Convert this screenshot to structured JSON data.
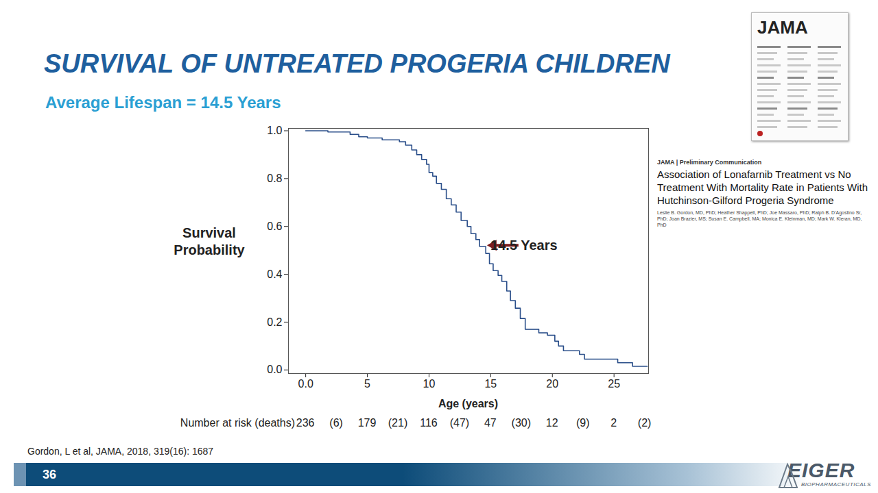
{
  "chart_data": {
    "type": "line",
    "title": "SURVIVAL OF UNTREATED PROGERIA CHILDREN",
    "subtitle": "Average Lifespan = 14.5 Years",
    "x_label": "Age (years)",
    "y_label": "Survival Probability",
    "xlim": [
      -1.4,
      27.8
    ],
    "xticks": [
      {
        "value": 0,
        "label": "0.0"
      },
      5,
      10,
      15,
      20,
      25
    ],
    "ylim": [
      -0.015,
      1.01
    ],
    "yticks": [
      {
        "value": 0,
        "label": "0.0"
      },
      {
        "value": 0.2,
        "label": "0.2"
      },
      {
        "value": 0.4,
        "label": "0.4"
      },
      {
        "value": 0.6,
        "label": "0.6"
      },
      {
        "value": 0.8,
        "label": "0.8"
      },
      {
        "value": 1,
        "label": "1.0"
      }
    ],
    "grid": false,
    "color": "#2b4f8a",
    "line_style": "step",
    "x": [
      0,
      1.8,
      3.6,
      4.3,
      5.0,
      6.2,
      7.6,
      8.1,
      8.6,
      9.0,
      9.4,
      9.8,
      10.0,
      10.3,
      10.6,
      11.0,
      11.4,
      11.8,
      12.2,
      12.6,
      13.1,
      13.4,
      13.8,
      14.1,
      14.6,
      14.9,
      15.2,
      15.6,
      15.9,
      16.3,
      16.6,
      17.0,
      17.4,
      17.8,
      18.9,
      19.6,
      20.2,
      20.5,
      20.9,
      22.2,
      22.6,
      25.3,
      26.5,
      27.7
    ],
    "values": [
      1.0,
      0.995,
      0.985,
      0.975,
      0.97,
      0.962,
      0.954,
      0.94,
      0.92,
      0.9,
      0.88,
      0.86,
      0.825,
      0.81,
      0.78,
      0.755,
      0.716,
      0.69,
      0.66,
      0.625,
      0.6,
      0.57,
      0.545,
      0.516,
      0.487,
      0.444,
      0.415,
      0.395,
      0.37,
      0.33,
      0.29,
      0.258,
      0.215,
      0.17,
      0.155,
      0.145,
      0.12,
      0.1,
      0.08,
      0.065,
      0.045,
      0.03,
      0.015,
      0.015
    ],
    "annotations": [
      {
        "text": "14.5 Years",
        "x": 14.5,
        "y": 0.52,
        "color": "#7b1c1c"
      }
    ],
    "number_at_risk": {
      "label": "Number at risk (deaths)",
      "at_risk": [
        236,
        179,
        116,
        47,
        12,
        2
      ],
      "deaths": [
        "(6)",
        "(21)",
        "(47)",
        "(30)",
        "(9)",
        "(2)"
      ]
    }
  },
  "source": "Gordon, L et al, JAMA, 2018, 319(16): 1687",
  "page_number": "36",
  "logo": {
    "name": "EIGER",
    "tagline": "BIOPHARMACEUTICALS"
  },
  "journal_cover": {
    "masthead": "JAMA"
  },
  "article": {
    "header": "JAMA | Preliminary Communication",
    "title": "Association of Lonafarnib Treatment vs No Treatment With Mortality Rate in Patients With Hutchinson-Gilford Progeria Syndrome",
    "authors": "Leslie B. Gordon, MD, PhD; Heather Shappell, PhD; Joe Massaro, PhD; Ralph B. D'Agostino Sr, PhD; Joan Brazier, MS; Susan E. Campbell, MA; Monica E. Kleinman, MD; Mark W. Kieran, MD, PhD"
  }
}
